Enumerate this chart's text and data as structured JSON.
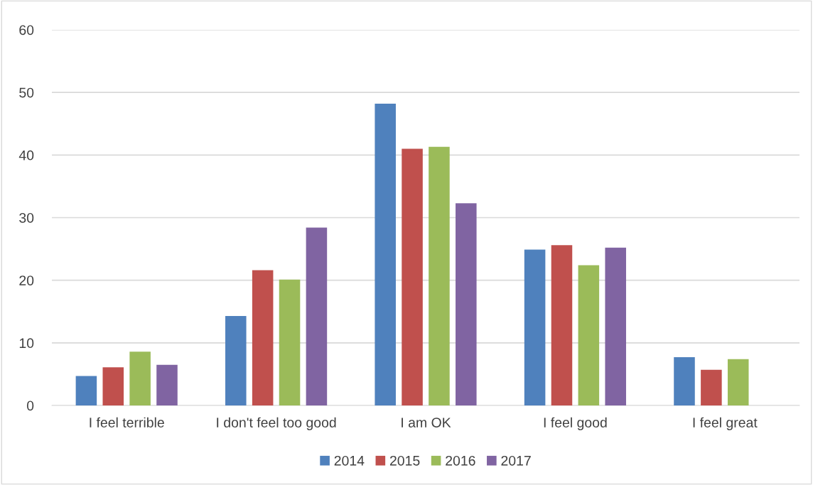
{
  "chart_data": {
    "type": "bar",
    "categories": [
      "I feel terrible",
      "I don't feel too good",
      "I am OK",
      "I feel good",
      "I feel great"
    ],
    "series": [
      {
        "name": "2014",
        "color": "#4f81bd",
        "values": [
          4.7,
          14.3,
          48.2,
          24.9,
          7.7
        ]
      },
      {
        "name": "2015",
        "color": "#c0504d",
        "values": [
          6.1,
          21.6,
          41.0,
          25.6,
          5.7
        ]
      },
      {
        "name": "2016",
        "color": "#9bbb59",
        "values": [
          8.6,
          20.1,
          41.3,
          22.4,
          7.4
        ]
      },
      {
        "name": "2017",
        "color": "#8064a2",
        "values": [
          6.5,
          28.4,
          32.3,
          25.2,
          null
        ]
      }
    ],
    "ylim": [
      0,
      60
    ],
    "yticks": [
      0,
      10,
      20,
      30,
      40,
      50,
      60
    ],
    "grid": "y",
    "legend": "bottom"
  }
}
